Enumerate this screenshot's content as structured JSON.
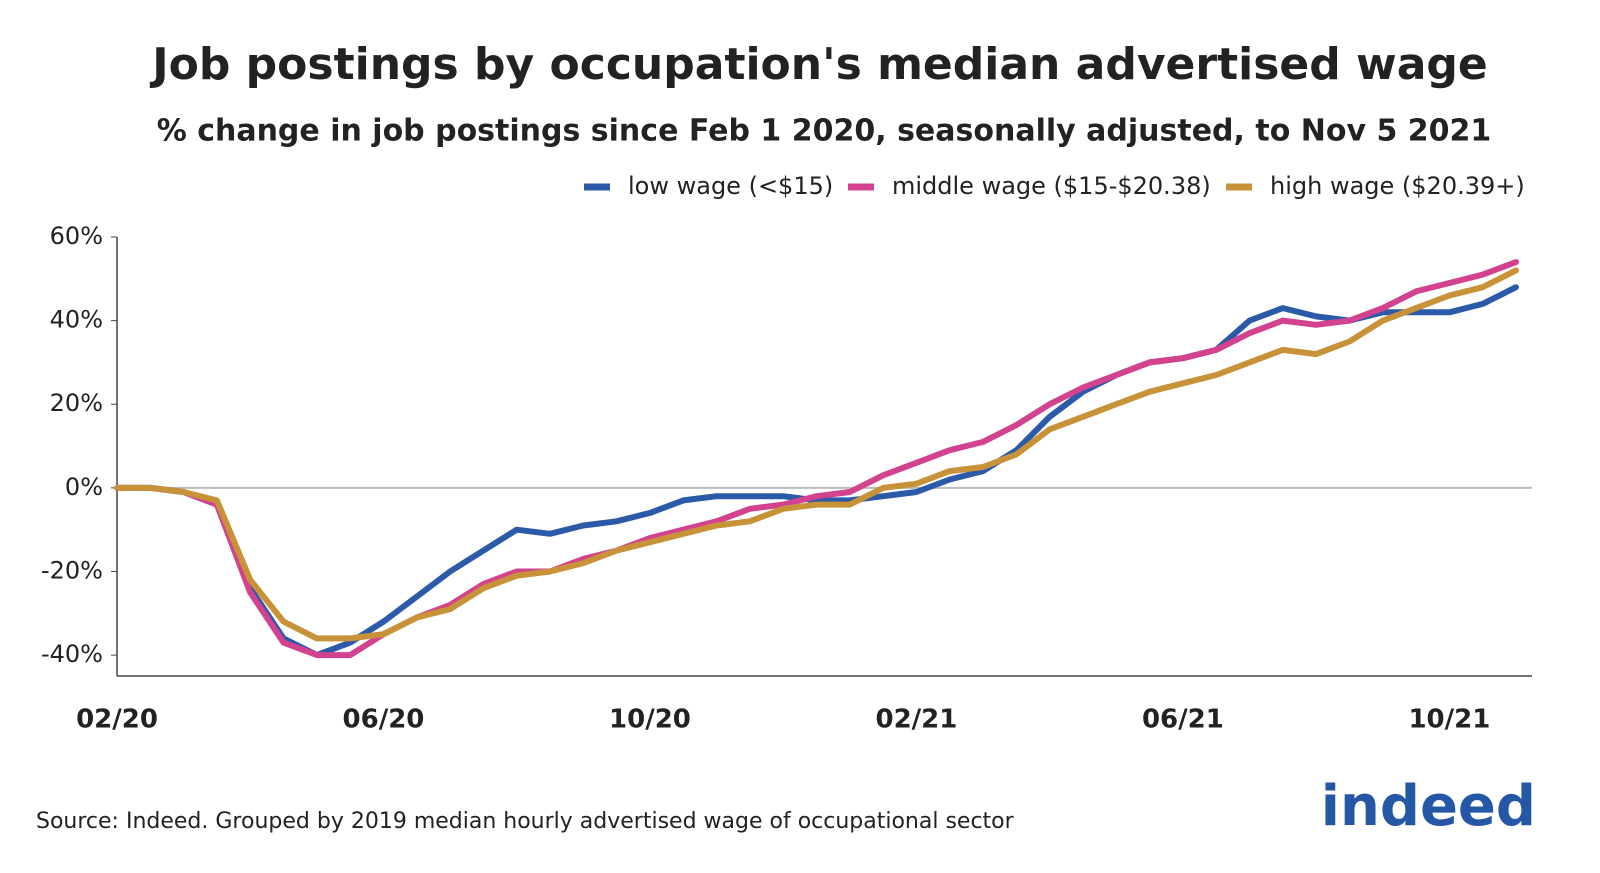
{
  "chart_data": {
    "type": "line",
    "title": "Job postings by occupation's median advertised wage",
    "subtitle": "% change in job postings since Feb 1 2020, seasonally adjusted, to Nov 5 2021",
    "source": "Source: Indeed. Grouped by 2019 median hourly advertised wage of occupational sector",
    "logo": "indeed",
    "categories": [
      "02/20",
      null,
      null,
      null,
      null,
      null,
      null,
      null,
      "06/20",
      null,
      null,
      null,
      null,
      null,
      null,
      null,
      "10/20",
      null,
      null,
      null,
      null,
      null,
      null,
      null,
      "02/21",
      null,
      null,
      null,
      null,
      null,
      null,
      null,
      "06/21",
      null,
      null,
      null,
      null,
      null,
      null,
      null,
      "10/21",
      null,
      null
    ],
    "series": [
      {
        "name": "low wage (<$15)",
        "color": "#2a5aa8",
        "values": [
          0,
          0,
          -1,
          -4,
          -24,
          -36,
          -40,
          -37,
          -32,
          -26,
          -20,
          -15,
          -10,
          -11,
          -9,
          -8,
          -6,
          -3,
          -2,
          -2,
          -2,
          -3,
          -3,
          -2,
          -1,
          2,
          4,
          9,
          17,
          23,
          27,
          30,
          31,
          33,
          40,
          43,
          41,
          40,
          42,
          42,
          42,
          44,
          48
        ]
      },
      {
        "name": "middle wage ($15-$20.38)",
        "color": "#d2428f",
        "values": [
          0,
          0,
          -1,
          -4,
          -25,
          -37,
          -40,
          -40,
          -35,
          -31,
          -28,
          -23,
          -20,
          -20,
          -17,
          -15,
          -12,
          -10,
          -8,
          -5,
          -4,
          -2,
          -1,
          3,
          6,
          9,
          11,
          15,
          20,
          24,
          27,
          30,
          31,
          33,
          37,
          40,
          39,
          40,
          43,
          47,
          49,
          51,
          54
        ]
      },
      {
        "name": "high wage ($20.39+)",
        "color": "#c89338",
        "values": [
          0,
          0,
          -1,
          -3,
          -22,
          -32,
          -36,
          -36,
          -35,
          -31,
          -29,
          -24,
          -21,
          -20,
          -18,
          -15,
          -13,
          -11,
          -9,
          -8,
          -5,
          -4,
          -4,
          0,
          1,
          4,
          5,
          8,
          14,
          17,
          20,
          23,
          25,
          27,
          30,
          33,
          32,
          35,
          40,
          43,
          46,
          48,
          52
        ]
      }
    ],
    "ylim": [
      -45,
      60
    ],
    "yticks": [
      {
        "value": -40,
        "label": "-40%"
      },
      {
        "value": -20,
        "label": "-20%"
      },
      {
        "value": 0,
        "label": "0%"
      },
      {
        "value": 20,
        "label": "20%"
      },
      {
        "value": 40,
        "label": "40%"
      },
      {
        "value": 60,
        "label": "60%"
      }
    ],
    "zero_line": true,
    "grid": false
  }
}
